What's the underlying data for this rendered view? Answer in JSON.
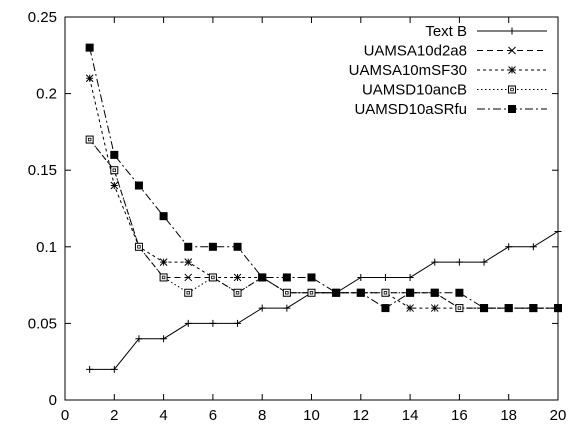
{
  "chart_data": {
    "type": "line",
    "title": "",
    "xlabel": "",
    "ylabel": "",
    "xlim": [
      0,
      20
    ],
    "ylim": [
      0,
      0.25
    ],
    "xticks": [
      "0",
      "2",
      "4",
      "6",
      "8",
      "10",
      "12",
      "14",
      "16",
      "18",
      "20"
    ],
    "yticks": [
      "0",
      "0.05",
      "0.1",
      "0.15",
      "0.2",
      "0.25"
    ],
    "grid": false,
    "legend_position": "top-right",
    "x": [
      1,
      2,
      3,
      4,
      5,
      6,
      7,
      8,
      9,
      10,
      11,
      12,
      13,
      14,
      15,
      16,
      17,
      18,
      19,
      20
    ],
    "series": [
      {
        "name": "Text B",
        "marker": "plus",
        "dash": "",
        "values": [
          0.02,
          0.02,
          0.04,
          0.04,
          0.05,
          0.05,
          0.05,
          0.06,
          0.06,
          0.07,
          0.07,
          0.08,
          0.08,
          0.08,
          0.09,
          0.09,
          0.09,
          0.1,
          0.1,
          0.11
        ]
      },
      {
        "name": "UAMSA10d2a8",
        "marker": "cross",
        "dash": "6,4",
        "values": [
          0.17,
          0.15,
          0.1,
          0.08,
          0.08,
          0.08,
          0.07,
          0.08,
          0.07,
          0.07,
          0.07,
          0.07,
          0.07,
          0.07,
          0.07,
          0.06,
          0.06,
          0.06,
          0.06,
          0.06
        ]
      },
      {
        "name": "UAMSA10mSF30",
        "marker": "star",
        "dash": "3,3",
        "values": [
          0.21,
          0.14,
          0.1,
          0.09,
          0.09,
          0.08,
          0.08,
          0.08,
          0.07,
          0.07,
          0.07,
          0.07,
          0.07,
          0.06,
          0.06,
          0.06,
          0.06,
          0.06,
          0.06,
          0.06
        ]
      },
      {
        "name": "UAMSD10ancB",
        "marker": "open-square",
        "dash": "1.5,2.5",
        "values": [
          0.17,
          0.15,
          0.1,
          0.08,
          0.07,
          0.08,
          0.07,
          0.08,
          0.07,
          0.07,
          0.07,
          0.07,
          0.07,
          0.07,
          0.07,
          0.06,
          0.06,
          0.06,
          0.06,
          0.06
        ]
      },
      {
        "name": "UAMSD10aSRfu",
        "marker": "filled-square",
        "dash": "8,3,2,3",
        "values": [
          0.23,
          0.16,
          0.14,
          0.12,
          0.1,
          0.1,
          0.1,
          0.08,
          0.08,
          0.08,
          0.07,
          0.07,
          0.06,
          0.07,
          0.07,
          0.07,
          0.06,
          0.06,
          0.06,
          0.06
        ]
      }
    ]
  }
}
